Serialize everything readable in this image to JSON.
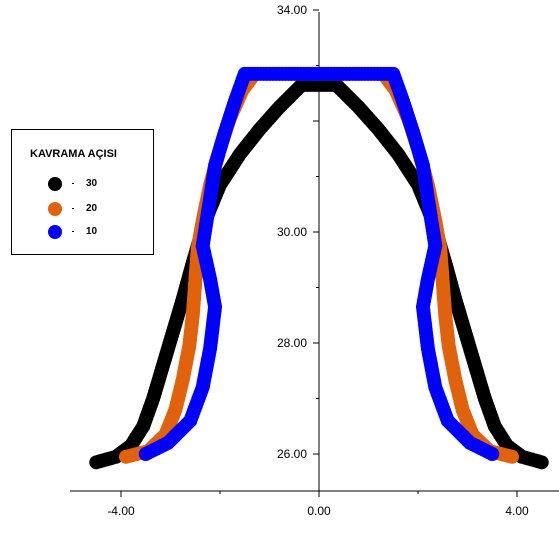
{
  "chart_data": {
    "type": "scatter",
    "title": "",
    "xlabel": "",
    "ylabel": "",
    "xlim": [
      -5.0,
      4.8
    ],
    "ylim": [
      25.3,
      34.2
    ],
    "x_ticks": [
      -4.0,
      0.0,
      4.0
    ],
    "x_tick_labels": [
      "-4.00",
      "0.00",
      "4.00"
    ],
    "y_ticks": [
      26.0,
      28.0,
      30.0,
      34.0
    ],
    "y_tick_labels": [
      "26.00",
      "28.00",
      "30.00",
      "34.00"
    ],
    "grid": false,
    "legend": {
      "title": "KAVRAMA AÇISI",
      "placement": "left",
      "entries": [
        {
          "label": "30",
          "color": "#000000"
        },
        {
          "label": "20",
          "color": "#e0620c"
        },
        {
          "label": "10",
          "color": "#0000ff"
        }
      ]
    },
    "series": [
      {
        "name": "30",
        "color": "#000000",
        "x": [
          -4.5,
          -4.1,
          -3.8,
          -3.55,
          -3.35,
          -3.15,
          -2.95,
          -2.75,
          -2.55,
          -2.3,
          -2.0,
          -1.6,
          -1.2,
          -0.8,
          -0.35,
          0.35,
          0.8,
          1.2,
          1.6,
          2.0,
          2.3,
          2.55,
          2.75,
          2.95,
          3.15,
          3.35,
          3.55,
          3.8,
          4.1,
          4.5
        ],
        "y": [
          25.85,
          25.95,
          26.15,
          26.5,
          27.0,
          27.6,
          28.2,
          28.8,
          29.45,
          30.2,
          30.85,
          31.4,
          31.85,
          32.25,
          32.65,
          32.65,
          32.25,
          31.85,
          31.4,
          30.85,
          30.2,
          29.45,
          28.8,
          28.2,
          27.6,
          27.0,
          26.5,
          26.15,
          25.95,
          25.85
        ]
      },
      {
        "name": "20",
        "color": "#e0620c",
        "x": [
          -3.9,
          -3.45,
          -3.1,
          -2.9,
          -2.75,
          -2.62,
          -2.55,
          -2.5,
          -2.45,
          -2.35,
          -2.2,
          -2.0,
          -1.8,
          -1.55,
          -1.3,
          1.3,
          1.55,
          1.8,
          2.0,
          2.2,
          2.35,
          2.45,
          2.5,
          2.55,
          2.62,
          2.75,
          2.9,
          3.1,
          3.45,
          3.9
        ],
        "y": [
          25.95,
          26.05,
          26.35,
          26.8,
          27.35,
          27.95,
          28.5,
          29.1,
          29.7,
          30.2,
          30.85,
          31.5,
          32.05,
          32.55,
          32.85,
          32.85,
          32.55,
          32.05,
          31.5,
          30.85,
          30.2,
          29.7,
          29.1,
          28.5,
          27.95,
          27.35,
          26.8,
          26.35,
          26.05,
          25.95
        ]
      },
      {
        "name": "10",
        "color": "#0000ff",
        "x": [
          -3.5,
          -3.05,
          -2.6,
          -2.35,
          -2.2,
          -2.1,
          -2.2,
          -2.35,
          -2.2,
          -2.1,
          -1.9,
          -1.7,
          -1.5,
          -0.8,
          0.0,
          0.8,
          1.5,
          1.7,
          1.9,
          2.1,
          2.2,
          2.35,
          2.2,
          2.1,
          2.2,
          2.35,
          2.6,
          3.05,
          3.5
        ],
        "y": [
          26.0,
          26.2,
          26.6,
          27.2,
          27.9,
          28.65,
          29.15,
          29.75,
          30.6,
          31.2,
          31.8,
          32.35,
          32.85,
          32.85,
          32.85,
          32.85,
          32.85,
          32.35,
          31.8,
          31.2,
          30.6,
          29.75,
          29.15,
          28.65,
          27.9,
          27.2,
          26.6,
          26.2,
          26.0
        ]
      }
    ]
  }
}
